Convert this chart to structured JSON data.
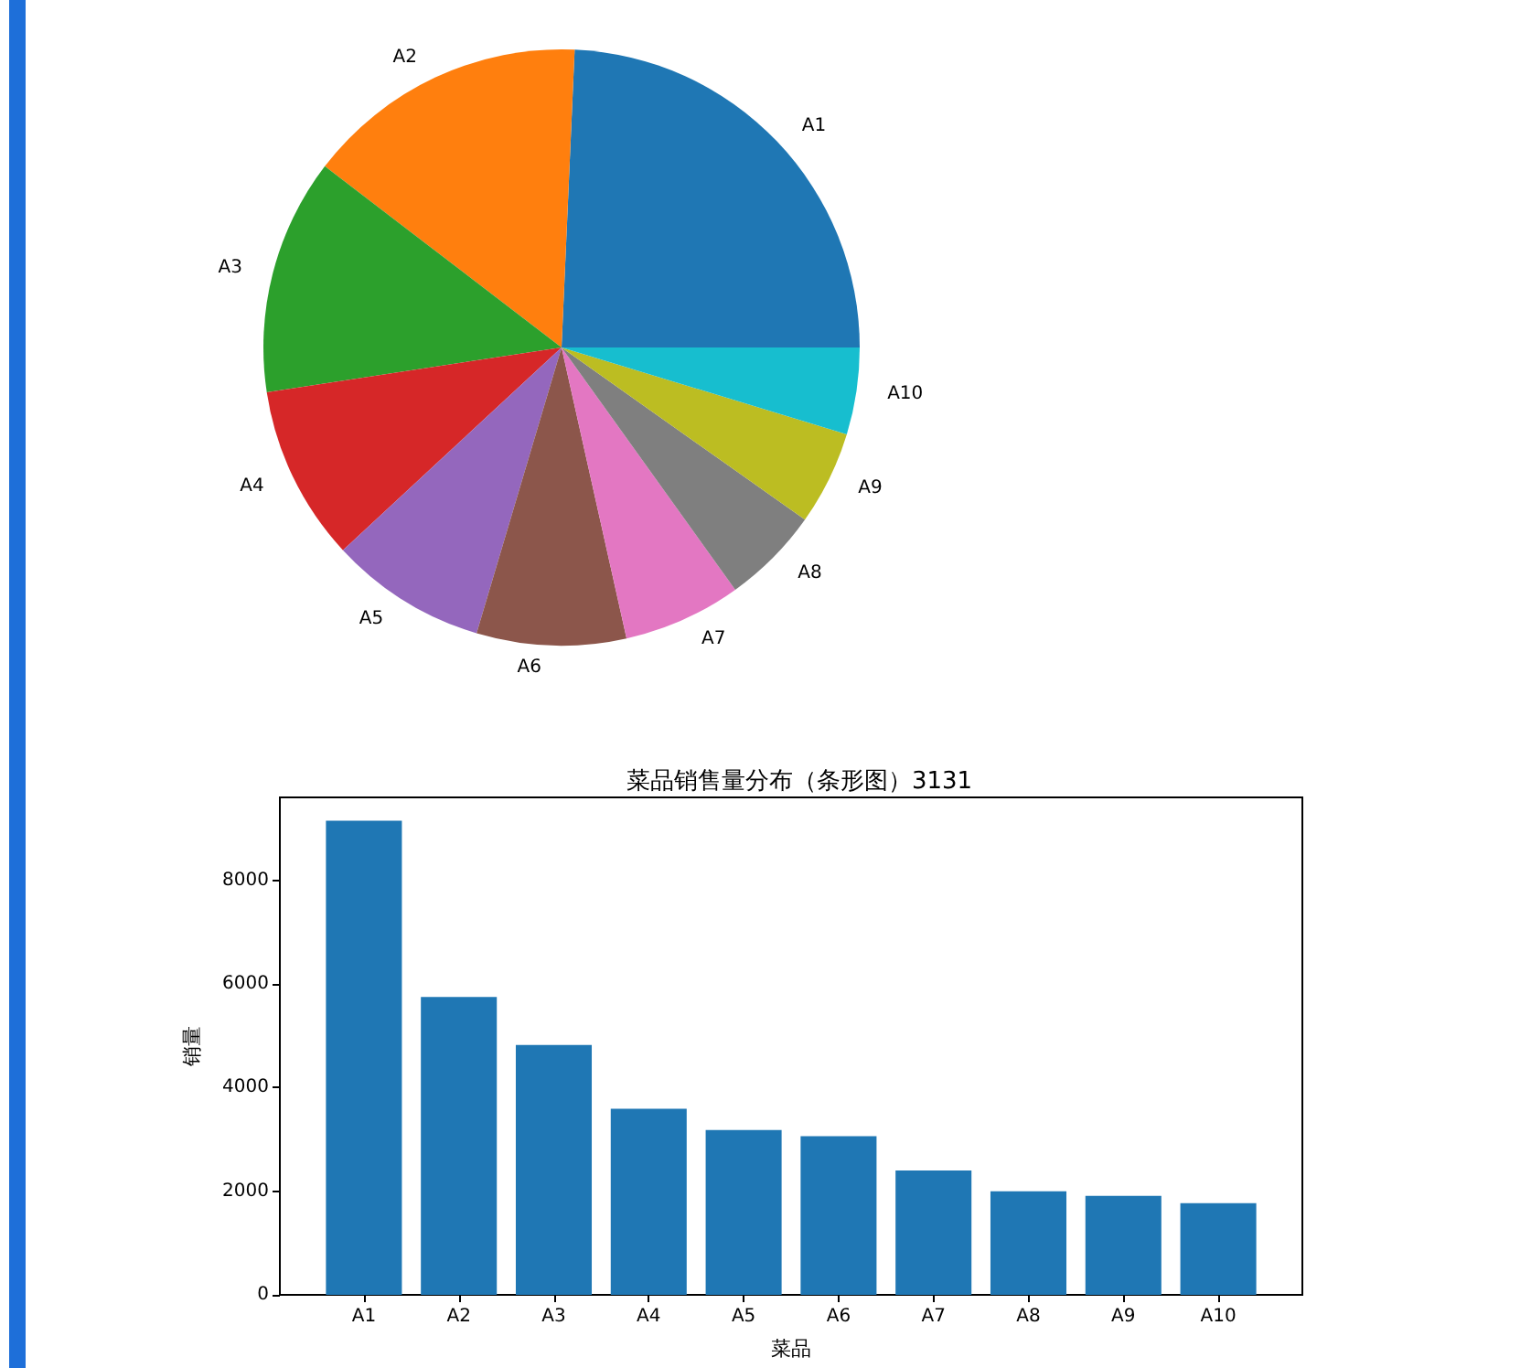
{
  "chart_data": [
    {
      "type": "pie",
      "categories": [
        "A1",
        "A2",
        "A3",
        "A4",
        "A5",
        "A6",
        "A7",
        "A8",
        "A9",
        "A10"
      ],
      "values": [
        24.3,
        15.3,
        12.8,
        9.5,
        8.5,
        8.1,
        6.4,
        5.3,
        5.1,
        4.7
      ],
      "colors": [
        "#1f77b4",
        "#ff7f0e",
        "#2ca02c",
        "#d62728",
        "#9467bd",
        "#8c564b",
        "#e377c2",
        "#7f7f7f",
        "#bcbd22",
        "#17becf"
      ]
    },
    {
      "type": "bar",
      "title": "菜品销售量分布（条形图）3131",
      "xlabel": "菜品",
      "ylabel": "销量",
      "categories": [
        "A1",
        "A2",
        "A3",
        "A4",
        "A5",
        "A6",
        "A7",
        "A8",
        "A9",
        "A10"
      ],
      "values": [
        9150,
        5750,
        4820,
        3590,
        3180,
        3060,
        2400,
        2000,
        1910,
        1770
      ],
      "color": "#1f77b4",
      "ylim": [
        0,
        9600
      ],
      "yticks": [
        0,
        2000,
        4000,
        6000,
        8000
      ]
    }
  ]
}
